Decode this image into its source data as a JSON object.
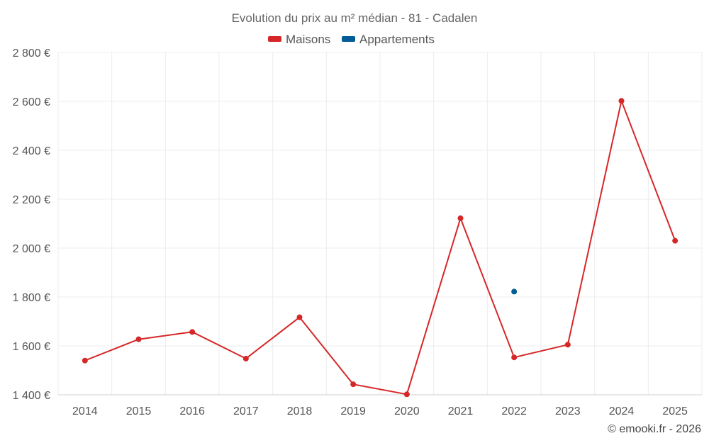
{
  "chart_data": {
    "type": "line",
    "title": "Evolution du prix au m² médian - 81 - Cadalen",
    "categories": [
      "2014",
      "2015",
      "2016",
      "2017",
      "2018",
      "2019",
      "2020",
      "2021",
      "2022",
      "2023",
      "2024",
      "2025"
    ],
    "series": [
      {
        "name": "Maisons",
        "color": "#d62728",
        "values": [
          1540,
          1627,
          1657,
          1548,
          1717,
          1443,
          1402,
          2122,
          1553,
          1605,
          2602,
          2030
        ]
      },
      {
        "name": "Appartements",
        "color": "#005b96",
        "values": [
          null,
          null,
          null,
          null,
          null,
          null,
          null,
          null,
          1822,
          null,
          null,
          null
        ]
      }
    ],
    "ylim": [
      1400,
      2800
    ],
    "yticks": [
      1400,
      1600,
      1800,
      2000,
      2200,
      2400,
      2600,
      2800
    ],
    "ytick_labels": [
      "1 400 €",
      "1 600 €",
      "1 800 €",
      "2 000 €",
      "2 200 €",
      "2 400 €",
      "2 600 €",
      "2 800 €"
    ],
    "xlabel": "",
    "ylabel": "",
    "grid": true,
    "legend": "top-center"
  },
  "credit": "© emooki.fr - 2026"
}
